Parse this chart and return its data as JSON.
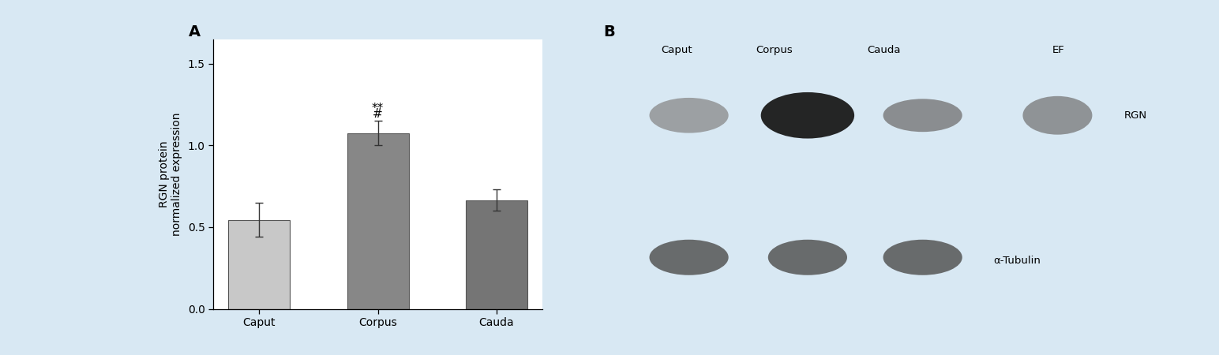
{
  "categories": [
    "Caput",
    "Corpus",
    "Cauda"
  ],
  "values": [
    0.545,
    1.075,
    0.665
  ],
  "errors": [
    0.105,
    0.075,
    0.065
  ],
  "bar_colors": [
    "#c8c8c8",
    "#878787",
    "#757575"
  ],
  "bar_edgecolors": [
    "#555555",
    "#555555",
    "#555555"
  ],
  "ylabel": "RGN protein\nnormalized expression",
  "ylim": [
    0.0,
    1.65
  ],
  "yticks": [
    0.0,
    0.5,
    1.0,
    1.5
  ],
  "ytick_labels": [
    "0.0",
    "0.5",
    "1.0",
    "1.5"
  ],
  "panel_a_label": "A",
  "panel_b_label": "B",
  "corpus_annotations_top": "**",
  "corpus_annotations_bot": "#",
  "background_color": "#d8e8f3",
  "panel_bg": "#ffffff",
  "font_size": 10,
  "label_font_size": 10,
  "annotation_font_size": 11,
  "blot_col_labels": [
    "Caput",
    "Corpus",
    "Cauda",
    "EF"
  ],
  "blot_label_rgn": "RGN",
  "blot_label_tubulin": "α-Tubulin",
  "rgn_blot_bg_left": "#d0d0d0",
  "rgn_blot_bg_right": "#383838",
  "tubulin_blot_bg": "#d4d4d4"
}
